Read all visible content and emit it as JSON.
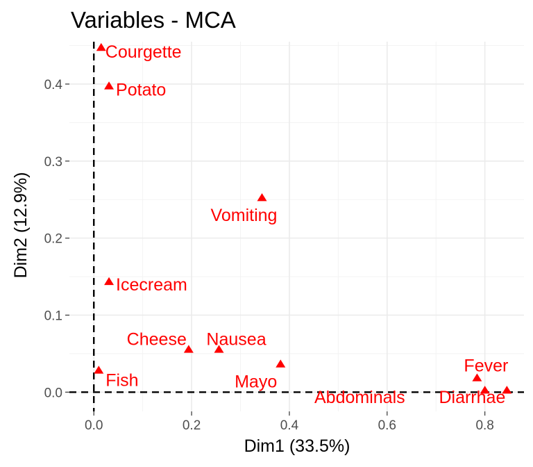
{
  "chart_data": {
    "type": "scatter",
    "title": "Variables - MCA",
    "xlabel": "Dim1 (33.5%)",
    "ylabel": "Dim2 (12.9%)",
    "xlim": [
      -0.05,
      0.88
    ],
    "ylim": [
      -0.025,
      0.455
    ],
    "xticks": [
      0.0,
      0.2,
      0.4,
      0.6,
      0.8
    ],
    "xtick_labels": [
      "0.0",
      "0.2",
      "0.4",
      "0.6",
      "0.8"
    ],
    "yticks": [
      0.0,
      0.1,
      0.2,
      0.3,
      0.4
    ],
    "ytick_labels": [
      "0.0",
      "0.1",
      "0.2",
      "0.3",
      "0.4"
    ],
    "grid": true,
    "reference_lines": {
      "x": 0,
      "y": 0,
      "style": "dashed"
    },
    "marker": "triangle",
    "color": "#ff0000",
    "points": [
      {
        "label": "Courgette",
        "x": 0.015,
        "y": 0.447
      },
      {
        "label": "Potato",
        "x": 0.031,
        "y": 0.397
      },
      {
        "label": "Vomiting",
        "x": 0.344,
        "y": 0.252
      },
      {
        "label": "Icecream",
        "x": 0.031,
        "y": 0.143
      },
      {
        "label": "Cheese",
        "x": 0.194,
        "y": 0.055
      },
      {
        "label": "Nausea",
        "x": 0.256,
        "y": 0.055
      },
      {
        "label": "Fish",
        "x": 0.01,
        "y": 0.028
      },
      {
        "label": "Mayo",
        "x": 0.382,
        "y": 0.036
      },
      {
        "label": "Fever",
        "x": 0.784,
        "y": 0.018
      },
      {
        "label": "Abdominals",
        "x": 0.8,
        "y": 0.002
      },
      {
        "label": "Diarrhae",
        "x": 0.845,
        "y": 0.002
      }
    ]
  }
}
